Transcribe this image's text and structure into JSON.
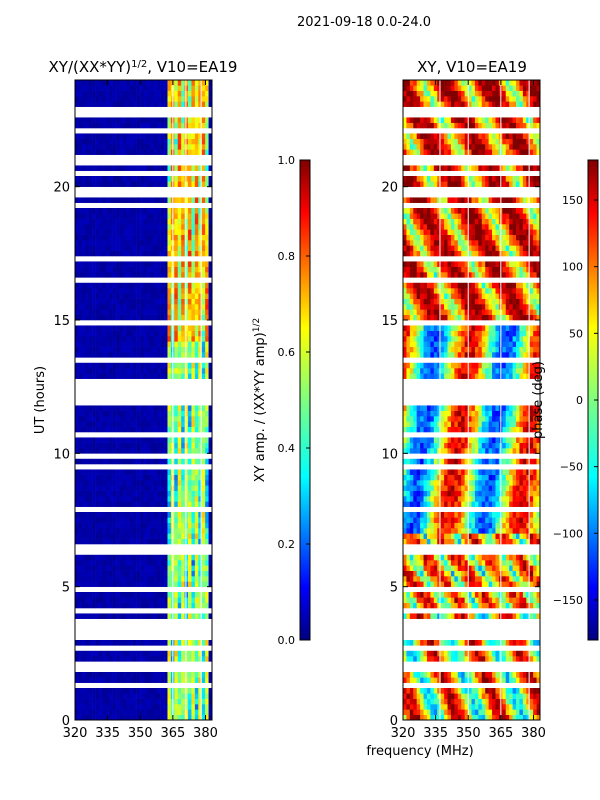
{
  "figure": {
    "suptitle": "2021-09-18 0.0-24.0",
    "xlabel": "frequency (MHz)"
  },
  "chart_data": [
    {
      "type": "heatmap",
      "name": "amplitude-ratio",
      "title_main": "XY/(XX*YY)",
      "title_sup": "1/2",
      "title_rest": ", V10=EA19",
      "xlabel": "",
      "ylabel": "UT (hours)",
      "xlim": [
        320,
        383
      ],
      "ylim": [
        0,
        24
      ],
      "xticks": [
        320,
        335,
        350,
        365,
        380
      ],
      "yticks": [
        0,
        5,
        10,
        15,
        20
      ],
      "colorscale": "jet",
      "colorbar": {
        "label_main": "XY amp. / (XX*YY amp)",
        "label_sup": "1/2",
        "range": [
          0.0,
          1.0
        ],
        "ticks": [
          "0.0",
          "0.2",
          "0.4",
          "0.6",
          "0.8",
          "1.0"
        ],
        "tick_values": [
          0,
          0.2,
          0.4,
          0.6,
          0.8,
          1.0
        ]
      },
      "colors": [
        "#00007f",
        "#0000ff",
        "#007fff",
        "#00ffff",
        "#7fff7f",
        "#ffff00",
        "#ff7f00",
        "#ff0000",
        "#7f0000"
      ]
    },
    {
      "type": "heatmap",
      "name": "phase",
      "title": "XY, V10=EA19",
      "xlabel": "frequency (MHz)",
      "ylabel": "",
      "xlim": [
        320,
        383
      ],
      "ylim": [
        0,
        24
      ],
      "xticks": [
        320,
        335,
        350,
        365,
        380
      ],
      "yticks": [
        0,
        5,
        10,
        15,
        20
      ],
      "colorscale": "jet",
      "colorbar": {
        "label": "phase (deg)",
        "range": [
          -180,
          180
        ],
        "ticks": [
          "−150",
          "−100",
          "−50",
          "0",
          "50",
          "100",
          "150"
        ],
        "tick_values": [
          -150,
          -100,
          -50,
          0,
          50,
          100,
          150
        ]
      }
    }
  ]
}
